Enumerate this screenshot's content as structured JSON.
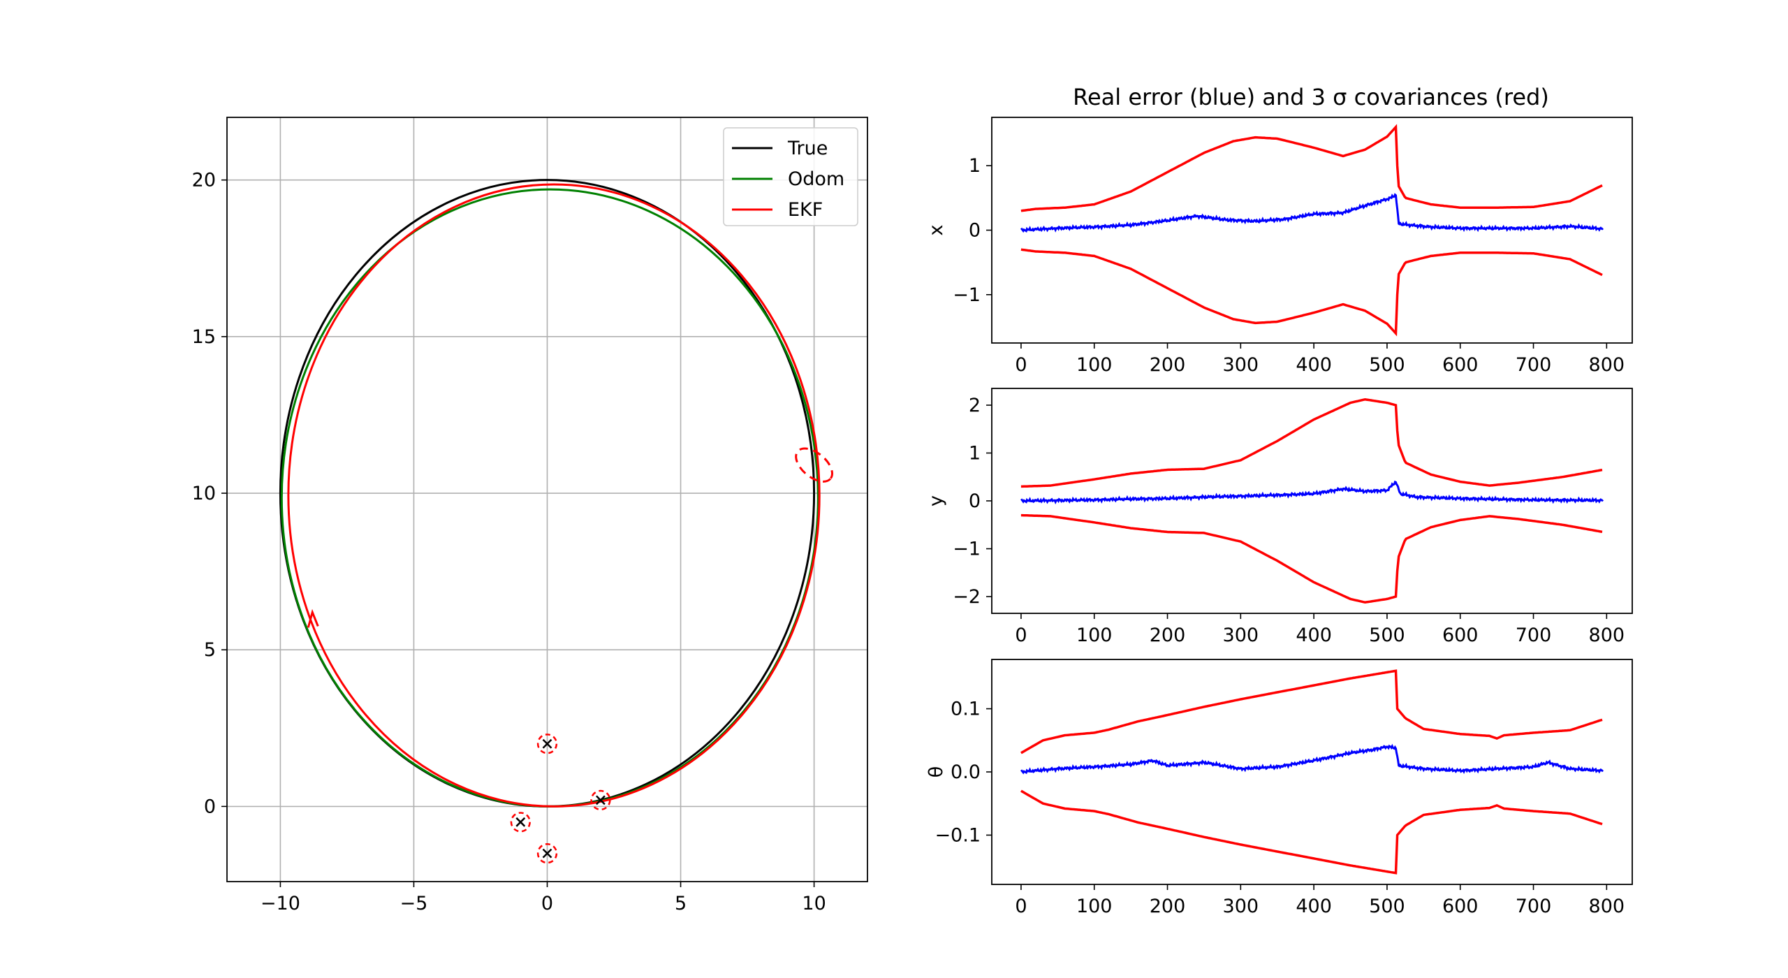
{
  "figure_title": "Real error (blue) and 3 σ covariances (red)",
  "colors": {
    "true": "#000000",
    "odom": "#008000",
    "ekf": "#ff0000",
    "error": "#0000ff",
    "cov": "#ff0000",
    "grid": "#b0b0b0"
  },
  "chart_data": [
    {
      "type": "line",
      "panel": "trajectory",
      "xlim": [
        -12,
        12
      ],
      "ylim": [
        -2.4,
        22
      ],
      "xticks": [
        "−10",
        "−5",
        "0",
        "5",
        "10"
      ],
      "yticks": [
        "0",
        "5",
        "10",
        "15",
        "20"
      ],
      "grid": true,
      "legend": {
        "placement": "top-right",
        "entries": [
          "True",
          "Odom",
          "EKF"
        ]
      },
      "series": [
        {
          "name": "True",
          "shape": "ellipse",
          "center": [
            0,
            10
          ],
          "rx": 10.0,
          "ry": 10.0
        },
        {
          "name": "Odom",
          "shape": "ellipse",
          "center": [
            0.1,
            9.85
          ],
          "rx": 10.05,
          "ry": 9.85
        },
        {
          "name": "EKF",
          "shape": "ellipse",
          "center": [
            0.25,
            9.93
          ],
          "rx": 9.95,
          "ry": 9.93
        }
      ],
      "landmarks": [
        {
          "x": 0,
          "y": 2,
          "cov_r": 0.35
        },
        {
          "x": 2,
          "y": 0.2,
          "cov_r": 0.35
        },
        {
          "x": -1,
          "y": -0.5,
          "cov_r": 0.35
        },
        {
          "x": 0,
          "y": -1.5,
          "cov_r": 0.35
        }
      ],
      "robot_cov_ellipse": {
        "x": 10.0,
        "y": 10.9,
        "rx": 0.8,
        "ry": 0.45,
        "angle_deg": -40
      }
    },
    {
      "type": "line",
      "panel": "error-x",
      "ylabel": "x",
      "xlim": [
        -40,
        835
      ],
      "ylim": [
        -1.75,
        1.75
      ],
      "xticks": [
        "0",
        "100",
        "200",
        "300",
        "400",
        "500",
        "600",
        "700",
        "800"
      ],
      "yticks": [
        "−1",
        "0",
        "1"
      ],
      "bound_points": [
        [
          0,
          0.3
        ],
        [
          20,
          0.33
        ],
        [
          60,
          0.35
        ],
        [
          100,
          0.4
        ],
        [
          150,
          0.6
        ],
        [
          200,
          0.9
        ],
        [
          250,
          1.2
        ],
        [
          290,
          1.38
        ],
        [
          320,
          1.44
        ],
        [
          350,
          1.42
        ],
        [
          400,
          1.28
        ],
        [
          440,
          1.15
        ],
        [
          470,
          1.25
        ],
        [
          500,
          1.45
        ],
        [
          512,
          1.6
        ],
        [
          515,
          0.7
        ],
        [
          525,
          0.5
        ],
        [
          560,
          0.4
        ],
        [
          600,
          0.35
        ],
        [
          650,
          0.35
        ],
        [
          700,
          0.36
        ],
        [
          750,
          0.45
        ],
        [
          795,
          0.7
        ]
      ],
      "error_points": [
        [
          0,
          0.0
        ],
        [
          50,
          0.03
        ],
        [
          100,
          0.05
        ],
        [
          150,
          0.08
        ],
        [
          200,
          0.15
        ],
        [
          240,
          0.22
        ],
        [
          280,
          0.16
        ],
        [
          320,
          0.14
        ],
        [
          360,
          0.17
        ],
        [
          400,
          0.25
        ],
        [
          440,
          0.27
        ],
        [
          470,
          0.38
        ],
        [
          505,
          0.5
        ],
        [
          512,
          0.55
        ],
        [
          516,
          0.1
        ],
        [
          530,
          0.08
        ],
        [
          560,
          0.05
        ],
        [
          600,
          0.03
        ],
        [
          650,
          0.03
        ],
        [
          700,
          0.03
        ],
        [
          750,
          0.06
        ],
        [
          795,
          0.02
        ]
      ]
    },
    {
      "type": "line",
      "panel": "error-y",
      "ylabel": "y",
      "xlim": [
        -40,
        835
      ],
      "ylim": [
        -2.35,
        2.35
      ],
      "xticks": [
        "0",
        "100",
        "200",
        "300",
        "400",
        "500",
        "600",
        "700",
        "800"
      ],
      "yticks": [
        "−2",
        "−1",
        "0",
        "1",
        "2"
      ],
      "bound_points": [
        [
          0,
          0.3
        ],
        [
          40,
          0.32
        ],
        [
          100,
          0.45
        ],
        [
          150,
          0.57
        ],
        [
          200,
          0.65
        ],
        [
          250,
          0.67
        ],
        [
          300,
          0.85
        ],
        [
          350,
          1.25
        ],
        [
          400,
          1.7
        ],
        [
          450,
          2.05
        ],
        [
          470,
          2.12
        ],
        [
          500,
          2.05
        ],
        [
          512,
          2.0
        ],
        [
          515,
          1.2
        ],
        [
          525,
          0.8
        ],
        [
          560,
          0.55
        ],
        [
          600,
          0.4
        ],
        [
          640,
          0.32
        ],
        [
          680,
          0.38
        ],
        [
          740,
          0.5
        ],
        [
          795,
          0.65
        ]
      ],
      "error_points": [
        [
          0,
          0.0
        ],
        [
          100,
          0.02
        ],
        [
          150,
          0.04
        ],
        [
          200,
          0.05
        ],
        [
          250,
          0.08
        ],
        [
          300,
          0.1
        ],
        [
          350,
          0.12
        ],
        [
          400,
          0.15
        ],
        [
          440,
          0.25
        ],
        [
          470,
          0.2
        ],
        [
          500,
          0.22
        ],
        [
          512,
          0.4
        ],
        [
          518,
          0.15
        ],
        [
          540,
          0.08
        ],
        [
          600,
          0.05
        ],
        [
          700,
          0.02
        ],
        [
          795,
          0.01
        ]
      ]
    },
    {
      "type": "line",
      "panel": "error-theta",
      "ylabel": "θ",
      "xlim": [
        -40,
        835
      ],
      "ylim": [
        -0.178,
        0.178
      ],
      "xticks": [
        "0",
        "100",
        "200",
        "300",
        "400",
        "500",
        "600",
        "700",
        "800"
      ],
      "yticks": [
        "−0.1",
        "0.0",
        "0.1"
      ],
      "bound_points": [
        [
          0,
          0.03
        ],
        [
          30,
          0.05
        ],
        [
          60,
          0.058
        ],
        [
          100,
          0.062
        ],
        [
          120,
          0.067
        ],
        [
          160,
          0.08
        ],
        [
          200,
          0.09
        ],
        [
          250,
          0.103
        ],
        [
          300,
          0.115
        ],
        [
          350,
          0.126
        ],
        [
          400,
          0.137
        ],
        [
          450,
          0.148
        ],
        [
          512,
          0.16
        ],
        [
          514,
          0.1
        ],
        [
          525,
          0.085
        ],
        [
          550,
          0.068
        ],
        [
          600,
          0.06
        ],
        [
          640,
          0.057
        ],
        [
          650,
          0.053
        ],
        [
          660,
          0.058
        ],
        [
          700,
          0.062
        ],
        [
          750,
          0.066
        ],
        [
          795,
          0.083
        ]
      ],
      "error_points": [
        [
          0,
          0.0
        ],
        [
          50,
          0.005
        ],
        [
          100,
          0.008
        ],
        [
          150,
          0.012
        ],
        [
          180,
          0.018
        ],
        [
          200,
          0.01
        ],
        [
          250,
          0.015
        ],
        [
          300,
          0.005
        ],
        [
          350,
          0.008
        ],
        [
          400,
          0.018
        ],
        [
          450,
          0.03
        ],
        [
          480,
          0.035
        ],
        [
          500,
          0.04
        ],
        [
          512,
          0.038
        ],
        [
          516,
          0.01
        ],
        [
          550,
          0.005
        ],
        [
          600,
          0.002
        ],
        [
          650,
          0.005
        ],
        [
          700,
          0.008
        ],
        [
          720,
          0.015
        ],
        [
          750,
          0.005
        ],
        [
          795,
          0.002
        ]
      ]
    }
  ]
}
